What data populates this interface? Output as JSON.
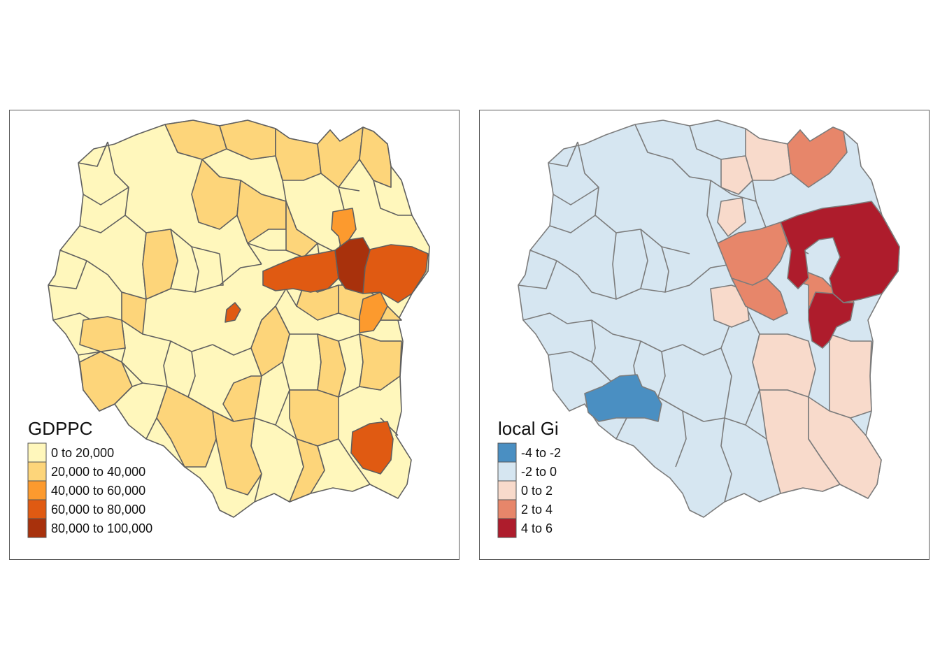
{
  "panels": [
    {
      "id": "gdppc",
      "legend_title": "GDPPC",
      "border_color": "#5f5f5f",
      "default_fill": "#fff7bc",
      "classes": [
        {
          "label": "0 to 20,000",
          "color": "#fff7bc"
        },
        {
          "label": "20,000 to 40,000",
          "color": "#fdd57a"
        },
        {
          "label": "40,000 to 60,000",
          "color": "#fc9a2e"
        },
        {
          "label": "60,000 to 80,000",
          "color": "#e05a12"
        },
        {
          "label": "80,000 to 100,000",
          "color": "#a8310c"
        }
      ]
    },
    {
      "id": "local-gi",
      "legend_title": "local Gi",
      "border_color": "#7c7c7c",
      "default_fill": "#d6e6f1",
      "classes": [
        {
          "label": "-4 to -2",
          "color": "#4a8fc2"
        },
        {
          "label": "-2 to 0",
          "color": "#d6e6f1"
        },
        {
          "label": "0 to 2",
          "color": "#f8dacb"
        },
        {
          "label": "2 to 4",
          "color": "#e7866a"
        },
        {
          "label": "4 to 6",
          "color": "#ae1c2c"
        }
      ]
    }
  ]
}
